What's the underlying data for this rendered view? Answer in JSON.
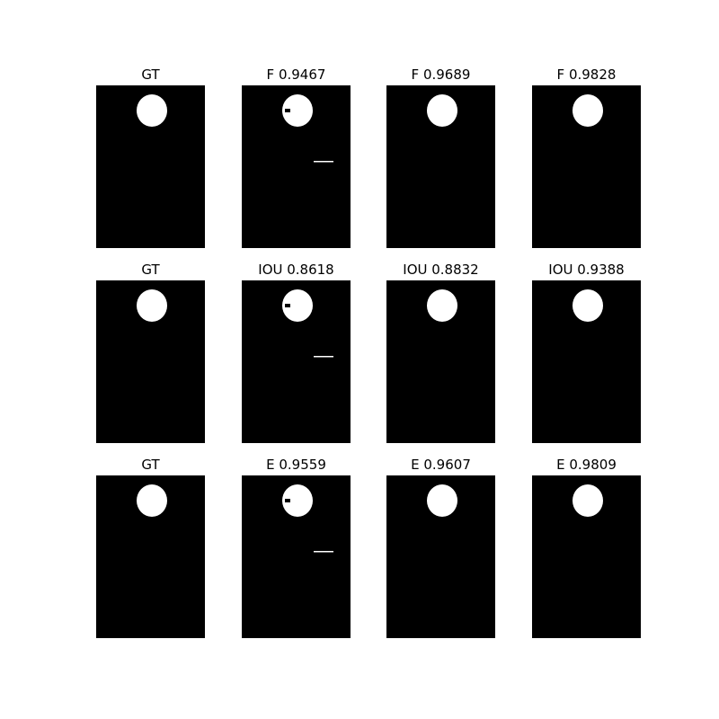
{
  "rows": [
    {
      "metric": "F",
      "titles": [
        "GT",
        "F 0.9467",
        "F 0.9689",
        "F 0.9828"
      ]
    },
    {
      "metric": "IOU",
      "titles": [
        "GT",
        "IOU 0.8618",
        "IOU 0.8832",
        "IOU 0.9388"
      ]
    },
    {
      "metric": "E",
      "titles": [
        "GT",
        "E 0.9559",
        "E 0.9607",
        "E 0.9809"
      ]
    }
  ],
  "colors": {
    "background": "#000000",
    "foreground": "#ffffff",
    "page": "#ffffff"
  }
}
